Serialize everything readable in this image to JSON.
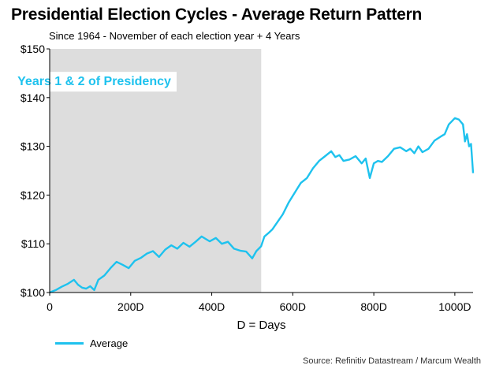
{
  "title": "Presidential Election Cycles - Average Return Pattern",
  "subtitle": "Since 1964 - November of each election year + 4 Years",
  "source": "Source: Refinitiv Datastream / Marcum Wealth",
  "colors": {
    "series": "#1ec2ee",
    "shade": "#dddddd",
    "annotation_text": "#1ec2ee",
    "annotation_bg": "#ffffff"
  },
  "chart_data": {
    "type": "line",
    "title": "Presidential Election Cycles - Average Return Pattern",
    "subtitle": "Since 1964 - November of each election year + 4 Years",
    "xlabel": "D = Days",
    "ylabel": "",
    "xlim": [
      0,
      1045
    ],
    "ylim": [
      100,
      150
    ],
    "x_ticks": [
      {
        "value": 0,
        "label": "0"
      },
      {
        "value": 200,
        "label": "200D"
      },
      {
        "value": 400,
        "label": "400D"
      },
      {
        "value": 600,
        "label": "600D"
      },
      {
        "value": 800,
        "label": "800D"
      },
      {
        "value": 1000,
        "label": "1000D"
      }
    ],
    "y_ticks": [
      {
        "value": 100,
        "label": "$100"
      },
      {
        "value": 110,
        "label": "$110"
      },
      {
        "value": 120,
        "label": "$120"
      },
      {
        "value": 130,
        "label": "$130"
      },
      {
        "value": 140,
        "label": "$140"
      },
      {
        "value": 150,
        "label": "$150"
      }
    ],
    "grid": false,
    "legend": "bottom-left",
    "shaded_region": {
      "x": [
        0,
        522
      ],
      "label": "Years 1 & 2 of Presidency"
    },
    "series": [
      {
        "name": "Average",
        "x": [
          0,
          15,
          30,
          45,
          60,
          70,
          80,
          90,
          100,
          110,
          120,
          135,
          150,
          165,
          180,
          195,
          210,
          225,
          240,
          255,
          270,
          285,
          300,
          315,
          330,
          345,
          360,
          375,
          385,
          395,
          410,
          425,
          440,
          455,
          470,
          485,
          500,
          510,
          522,
          530,
          540,
          550,
          560,
          575,
          590,
          605,
          620,
          635,
          650,
          665,
          680,
          695,
          705,
          715,
          725,
          740,
          755,
          770,
          780,
          790,
          800,
          810,
          820,
          835,
          850,
          865,
          880,
          890,
          900,
          910,
          920,
          935,
          950,
          965,
          975,
          985,
          1000,
          1010,
          1020,
          1025,
          1030,
          1035,
          1040,
          1045
        ],
        "y": [
          100.0,
          100.5,
          101.2,
          101.8,
          102.6,
          101.6,
          101.0,
          100.8,
          101.3,
          100.5,
          102.6,
          103.5,
          105.0,
          106.3,
          105.7,
          105.0,
          106.5,
          107.1,
          108.0,
          108.5,
          107.3,
          108.8,
          109.7,
          109.0,
          110.2,
          109.4,
          110.4,
          111.5,
          111.0,
          110.5,
          111.2,
          110.0,
          110.4,
          109.0,
          108.6,
          108.4,
          107.0,
          108.5,
          109.5,
          111.5,
          112.2,
          113.0,
          114.2,
          116.0,
          118.5,
          120.5,
          122.5,
          123.5,
          125.5,
          127.0,
          128.0,
          129.0,
          127.8,
          128.2,
          127.0,
          127.3,
          128.0,
          126.5,
          127.5,
          123.5,
          126.5,
          127.0,
          126.8,
          128.0,
          129.5,
          129.8,
          129.0,
          129.5,
          128.6,
          130.0,
          128.8,
          129.5,
          131.2,
          132.0,
          132.5,
          134.5,
          135.8,
          135.5,
          134.5,
          131.0,
          132.5,
          130.0,
          130.5,
          124.5
        ]
      }
    ],
    "annotations": [
      {
        "text": "Years 1 & 2 of Presidency",
        "x": 110,
        "y": 143.5
      }
    ]
  }
}
